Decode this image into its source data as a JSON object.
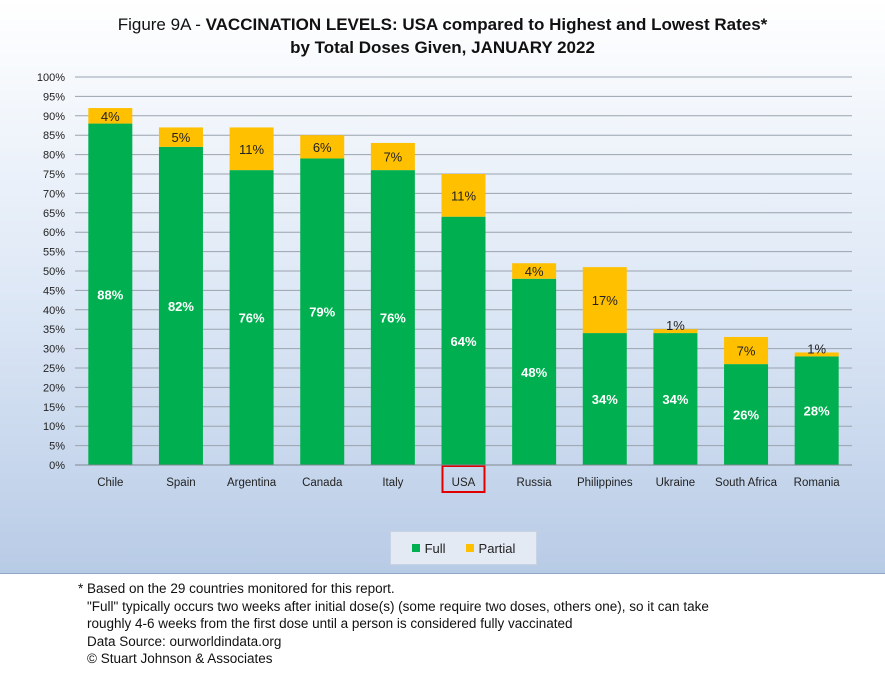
{
  "title": {
    "prefix": "Figure 9A - ",
    "bold": "VACCINATION LEVELS:  USA compared to Highest and Lowest Rates*",
    "line2": "by Total Doses Given, JANUARY 2022"
  },
  "highlight_category": "USA",
  "chart_data": {
    "type": "bar",
    "stacked": true,
    "categories": [
      "Chile",
      "Spain",
      "Argentina",
      "Canada",
      "Italy",
      "USA",
      "Russia",
      "Philippines",
      "Ukraine",
      "South Africa",
      "Romania"
    ],
    "series": [
      {
        "name": "Full",
        "color": "#00b050",
        "values": [
          88,
          82,
          76,
          79,
          76,
          64,
          48,
          34,
          34,
          26,
          28
        ]
      },
      {
        "name": "Partial",
        "color": "#ffc000",
        "values": [
          4,
          5,
          11,
          6,
          7,
          11,
          4,
          17,
          1,
          7,
          1
        ]
      }
    ],
    "data_labels": {
      "Full": [
        "88%",
        "82%",
        "76%",
        "79%",
        "76%",
        "64%",
        "48%",
        "34%",
        "34%",
        "26%",
        "28%"
      ],
      "Partial": [
        "4%",
        "5%",
        "11%",
        "6%",
        "7%",
        "11%",
        "4%",
        "17%",
        "1%",
        "7%",
        "1%"
      ]
    },
    "yticks": [
      "0%",
      "5%",
      "10%",
      "15%",
      "20%",
      "25%",
      "30%",
      "35%",
      "40%",
      "45%",
      "50%",
      "55%",
      "60%",
      "65%",
      "70%",
      "75%",
      "80%",
      "85%",
      "90%",
      "95%",
      "100%"
    ],
    "ylim": [
      0,
      100
    ],
    "grid": true,
    "legend_position": "bottom"
  },
  "footnotes": {
    "line1": "* Based on the 29 countries monitored for this report.",
    "line2": "\"Full\" typically occurs two weeks after initial dose(s) (some require two doses, others one),  so it can take",
    "line3": "roughly 4-6 weeks from the first dose until a person is considered fully vaccinated",
    "line4": "Data Source:  ourworldindata.org",
    "line5": "© Stuart Johnson & Associates"
  }
}
